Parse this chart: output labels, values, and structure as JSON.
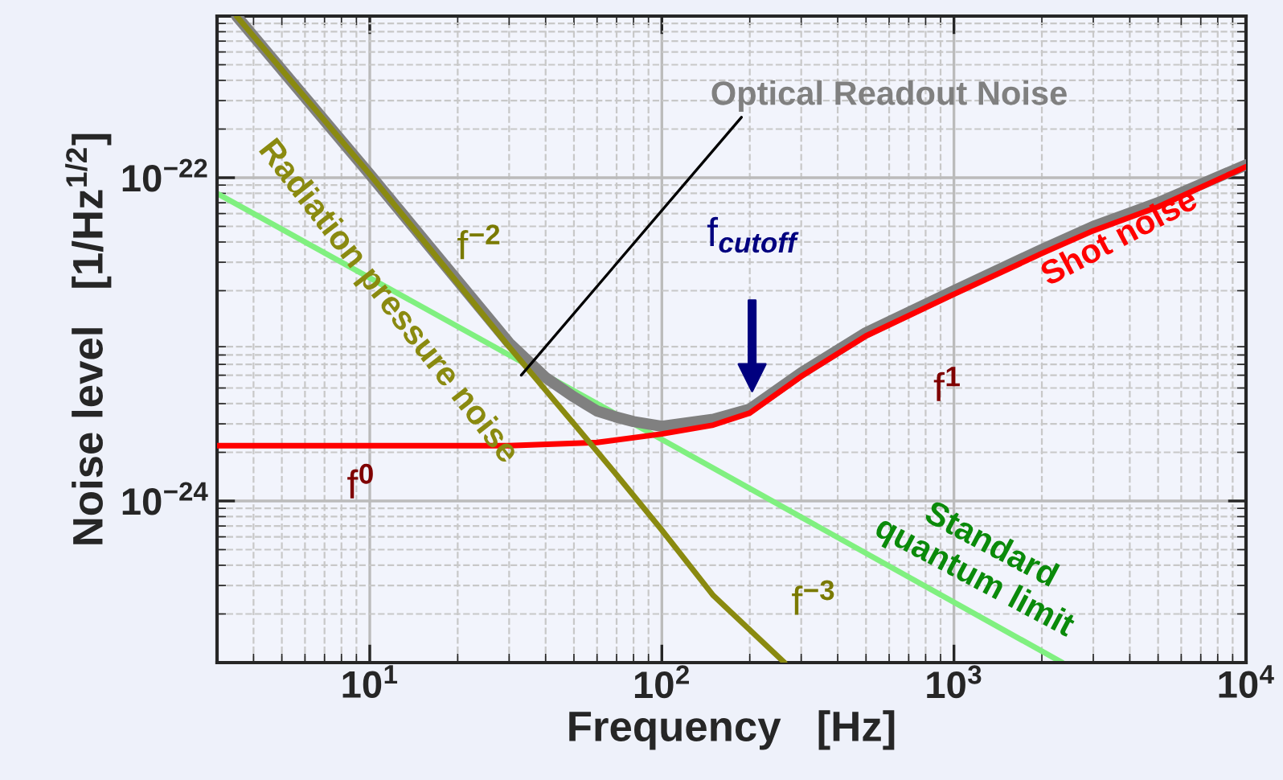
{
  "chart_data": {
    "type": "line",
    "xlabel": "Frequency   [Hz]",
    "ylabel": "Noise level   [1/Hz$^{1/2}$]",
    "log": "xy",
    "xlim": [
      3,
      10000
    ],
    "ylim": [
      1e-25,
      1e-21
    ],
    "xticks": [
      {
        "value": 10,
        "label": "10$^{1}$"
      },
      {
        "value": 100,
        "label": "10$^{2}$"
      },
      {
        "value": 1000,
        "label": "10$^{3}$"
      },
      {
        "value": 10000,
        "label": "10$^{4}$"
      }
    ],
    "yticks": [
      {
        "value": 1e-24,
        "label": "10$^{−24}$"
      },
      {
        "value": 1e-22,
        "label": "10$^{−22}$"
      }
    ],
    "grid": true,
    "legend": false,
    "line_style": "solid",
    "marker": "none",
    "series": [
      {
        "name": "Optical Readout Noise",
        "color": "#808080",
        "x": [
          3.5,
          10,
          30,
          40,
          50,
          60,
          70,
          80,
          100,
          150,
          200,
          300,
          500,
          1000,
          2000,
          3000,
          5000,
          10000
        ],
        "values": [
          1e-21,
          1.05e-22,
          9.5e-24,
          5.8e-24,
          4.4e-24,
          3.6e-24,
          3.3e-24,
          3.1e-24,
          2.9e-24,
          3.2e-24,
          3.7e-24,
          6.2e-24,
          1.1e-23,
          2e-23,
          3.6e-23,
          5e-23,
          7e-23,
          1.2e-22
        ]
      },
      {
        "name": "Radiation pressure noise",
        "color": "#8a8a10",
        "x": [
          3.5,
          10,
          30,
          50,
          70,
          100,
          150,
          263
        ],
        "values": [
          1e-21,
          1.05e-22,
          9e-24,
          3e-24,
          1.45e-24,
          6.6e-25,
          2.6e-25,
          1e-25
        ]
      },
      {
        "name": "Shot noise",
        "color": "#ff0000",
        "x": [
          3,
          30,
          60,
          100,
          150,
          200,
          300,
          500,
          1000,
          2000,
          3000,
          5000,
          10000
        ],
        "values": [
          2.2e-24,
          2.2e-24,
          2.3e-24,
          2.6e-24,
          2.95e-24,
          3.5e-24,
          5.9e-24,
          1.05e-23,
          1.9e-23,
          3.4e-23,
          4.7e-23,
          6.6e-23,
          1.17e-22
        ]
      },
      {
        "name": "Standard\nquantum limit",
        "color": "#80f080",
        "x": [
          3,
          100,
          2350
        ],
        "values": [
          8e-23,
          2.4e-24,
          1e-25
        ]
      }
    ],
    "annotations": [
      "f$^{−2}$",
      "f$_{cutoff}$",
      "f$^{1}$",
      "f$^{0}$",
      "f$^{−3}$"
    ]
  }
}
